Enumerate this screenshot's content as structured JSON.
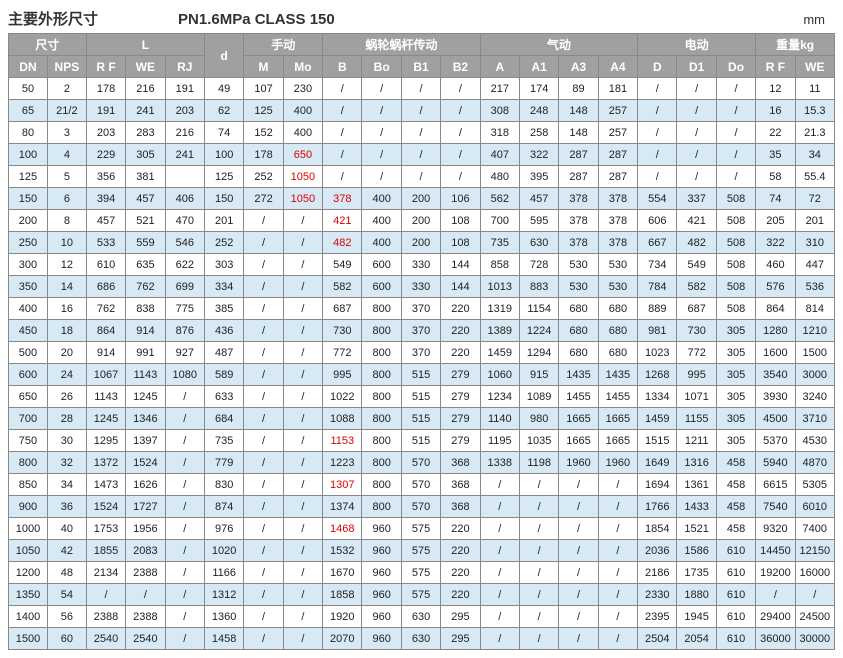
{
  "header": {
    "title_left": "主要外形尺寸",
    "title_mid": "PN1.6MPa  CLASS 150",
    "unit": "mm"
  },
  "columns_top": [
    {
      "label": "尺寸",
      "span": 2
    },
    {
      "label": "L",
      "span": 3
    },
    {
      "label": "d",
      "span": 1,
      "rowspan": 2
    },
    {
      "label": "手动",
      "span": 2
    },
    {
      "label": "蜗轮蜗杆传动",
      "span": 4
    },
    {
      "label": "气动",
      "span": 4
    },
    {
      "label": "电动",
      "span": 3
    },
    {
      "label": "重量kg",
      "span": 2
    }
  ],
  "columns_sub": [
    "DN",
    "NPS",
    "R F",
    "WE",
    "RJ",
    "M",
    "Mo",
    "B",
    "Bo",
    "B1",
    "B2",
    "A",
    "A1",
    "A3",
    "A4",
    "D",
    "D1",
    "Do",
    "R F",
    "WE"
  ],
  "rows": [
    [
      "50",
      "2",
      "178",
      "216",
      "191",
      "49",
      "107",
      "230",
      "/",
      "/",
      "/",
      "/",
      "217",
      "174",
      "89",
      "181",
      "/",
      "/",
      "/",
      "12",
      "11"
    ],
    [
      "65",
      "21/2",
      "191",
      "241",
      "203",
      "62",
      "125",
      "400",
      "/",
      "/",
      "/",
      "/",
      "308",
      "248",
      "148",
      "257",
      "/",
      "/",
      "/",
      "16",
      "15.3"
    ],
    [
      "80",
      "3",
      "203",
      "283",
      "216",
      "74",
      "152",
      "400",
      "/",
      "/",
      "/",
      "/",
      "318",
      "258",
      "148",
      "257",
      "/",
      "/",
      "/",
      "22",
      "21.3"
    ],
    [
      "100",
      "4",
      "229",
      "305",
      "241",
      "100",
      "178",
      "650",
      "/",
      "/",
      "/",
      "/",
      "407",
      "322",
      "287",
      "287",
      "/",
      "/",
      "/",
      "35",
      "34"
    ],
    [
      "125",
      "5",
      "356",
      "381",
      "",
      "125",
      "252",
      "1050",
      "/",
      "/",
      "/",
      "/",
      "480",
      "395",
      "287",
      "287",
      "/",
      "/",
      "/",
      "58",
      "55.4"
    ],
    [
      "150",
      "6",
      "394",
      "457",
      "406",
      "150",
      "272",
      "1050",
      "378",
      "400",
      "200",
      "106",
      "562",
      "457",
      "378",
      "378",
      "554",
      "337",
      "508",
      "74",
      "72"
    ],
    [
      "200",
      "8",
      "457",
      "521",
      "470",
      "201",
      "/",
      "/",
      "421",
      "400",
      "200",
      "108",
      "700",
      "595",
      "378",
      "378",
      "606",
      "421",
      "508",
      "205",
      "201"
    ],
    [
      "250",
      "10",
      "533",
      "559",
      "546",
      "252",
      "/",
      "/",
      "482",
      "400",
      "200",
      "108",
      "735",
      "630",
      "378",
      "378",
      "667",
      "482",
      "508",
      "322",
      "310"
    ],
    [
      "300",
      "12",
      "610",
      "635",
      "622",
      "303",
      "/",
      "/",
      "549",
      "600",
      "330",
      "144",
      "858",
      "728",
      "530",
      "530",
      "734",
      "549",
      "508",
      "460",
      "447"
    ],
    [
      "350",
      "14",
      "686",
      "762",
      "699",
      "334",
      "/",
      "/",
      "582",
      "600",
      "330",
      "144",
      "1013",
      "883",
      "530",
      "530",
      "784",
      "582",
      "508",
      "576",
      "536"
    ],
    [
      "400",
      "16",
      "762",
      "838",
      "775",
      "385",
      "/",
      "/",
      "687",
      "800",
      "370",
      "220",
      "1319",
      "1154",
      "680",
      "680",
      "889",
      "687",
      "508",
      "864",
      "814"
    ],
    [
      "450",
      "18",
      "864",
      "914",
      "876",
      "436",
      "/",
      "/",
      "730",
      "800",
      "370",
      "220",
      "1389",
      "1224",
      "680",
      "680",
      "981",
      "730",
      "305",
      "1280",
      "1210"
    ],
    [
      "500",
      "20",
      "914",
      "991",
      "927",
      "487",
      "/",
      "/",
      "772",
      "800",
      "370",
      "220",
      "1459",
      "1294",
      "680",
      "680",
      "1023",
      "772",
      "305",
      "1600",
      "1500"
    ],
    [
      "600",
      "24",
      "1067",
      "1143",
      "1080",
      "589",
      "/",
      "/",
      "995",
      "800",
      "515",
      "279",
      "1060",
      "915",
      "1435",
      "1435",
      "1268",
      "995",
      "305",
      "3540",
      "3000"
    ],
    [
      "650",
      "26",
      "1143",
      "1245",
      "/",
      "633",
      "/",
      "/",
      "1022",
      "800",
      "515",
      "279",
      "1234",
      "1089",
      "1455",
      "1455",
      "1334",
      "1071",
      "305",
      "3930",
      "3240"
    ],
    [
      "700",
      "28",
      "1245",
      "1346",
      "/",
      "684",
      "/",
      "/",
      "1088",
      "800",
      "515",
      "279",
      "1140",
      "980",
      "1665",
      "1665",
      "1459",
      "1155",
      "305",
      "4500",
      "3710"
    ],
    [
      "750",
      "30",
      "1295",
      "1397",
      "/",
      "735",
      "/",
      "/",
      "1153",
      "800",
      "515",
      "279",
      "1195",
      "1035",
      "1665",
      "1665",
      "1515",
      "1211",
      "305",
      "5370",
      "4530"
    ],
    [
      "800",
      "32",
      "1372",
      "1524",
      "/",
      "779",
      "/",
      "/",
      "1223",
      "800",
      "570",
      "368",
      "1338",
      "1198",
      "1960",
      "1960",
      "1649",
      "1316",
      "458",
      "5940",
      "4870"
    ],
    [
      "850",
      "34",
      "1473",
      "1626",
      "/",
      "830",
      "/",
      "/",
      "1307",
      "800",
      "570",
      "368",
      "/",
      "/",
      "/",
      "/",
      "1694",
      "1361",
      "458",
      "6615",
      "5305"
    ],
    [
      "900",
      "36",
      "1524",
      "1727",
      "/",
      "874",
      "/",
      "/",
      "1374",
      "800",
      "570",
      "368",
      "/",
      "/",
      "/",
      "/",
      "1766",
      "1433",
      "458",
      "7540",
      "6010"
    ],
    [
      "1000",
      "40",
      "1753",
      "1956",
      "/",
      "976",
      "/",
      "/",
      "1468",
      "960",
      "575",
      "220",
      "/",
      "/",
      "/",
      "/",
      "1854",
      "1521",
      "458",
      "9320",
      "7400"
    ],
    [
      "1050",
      "42",
      "1855",
      "2083",
      "/",
      "1020",
      "/",
      "/",
      "1532",
      "960",
      "575",
      "220",
      "/",
      "/",
      "/",
      "/",
      "2036",
      "1586",
      "610",
      "14450",
      "12150"
    ],
    [
      "1200",
      "48",
      "2134",
      "2388",
      "/",
      "1166",
      "/",
      "/",
      "1670",
      "960",
      "575",
      "220",
      "/",
      "/",
      "/",
      "/",
      "2186",
      "1735",
      "610",
      "19200",
      "16000"
    ],
    [
      "1350",
      "54",
      "/",
      "/",
      "/",
      "1312",
      "/",
      "/",
      "1858",
      "960",
      "575",
      "220",
      "/",
      "/",
      "/",
      "/",
      "2330",
      "1880",
      "610",
      "/",
      "/"
    ],
    [
      "1400",
      "56",
      "2388",
      "2388",
      "/",
      "1360",
      "/",
      "/",
      "1920",
      "960",
      "630",
      "295",
      "/",
      "/",
      "/",
      "/",
      "2395",
      "1945",
      "610",
      "29400",
      "24500"
    ],
    [
      "1500",
      "60",
      "2540",
      "2540",
      "/",
      "1458",
      "/",
      "/",
      "2070",
      "960",
      "630",
      "295",
      "/",
      "/",
      "/",
      "/",
      "2504",
      "2054",
      "610",
      "36000",
      "30000"
    ]
  ],
  "red_cells": [
    {
      "row": 3,
      "col": 7
    },
    {
      "row": 4,
      "col": 7
    },
    {
      "row": 5,
      "col": 7
    },
    {
      "row": 5,
      "col": 8
    },
    {
      "row": 6,
      "col": 8
    },
    {
      "row": 7,
      "col": 8
    },
    {
      "row": 16,
      "col": 8
    },
    {
      "row": 18,
      "col": 8
    },
    {
      "row": 20,
      "col": 8
    }
  ],
  "style": {
    "header_bg": "#a0a0a0",
    "header_fg": "#ffffff",
    "row_alt_bg": "#d6e9f4",
    "border_color": "#888888",
    "font_size_cell": 11,
    "font_size_header": 12,
    "red_color": "#d00000"
  }
}
